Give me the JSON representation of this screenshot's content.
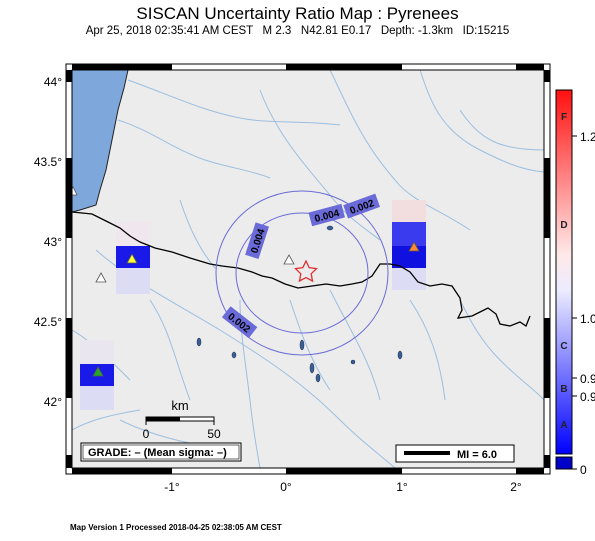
{
  "title": "SISCAN Uncertainty Ratio Map : Pyrenees",
  "subtitle": "Apr 25, 2018 02:35:41 AM CEST   M 2.3   N42.81 E0.17   Depth: -1.3km   ID:15215",
  "footer": "Map Version 1 Processed 2018-04-25 02:38:05 AM CEST",
  "map": {
    "lon_range": [
      -1.85,
      2.25
    ],
    "lat_range": [
      41.55,
      44.15
    ],
    "lat_ticks": [
      "44°",
      "43.5°",
      "43°",
      "42.5°",
      "42°"
    ],
    "lon_ticks": [
      "-1°",
      "0°",
      "1°",
      "2°"
    ],
    "colors": {
      "land": "#ececec",
      "sea": "#7ea8dc",
      "river": "#9bbfe0",
      "border": "#000000",
      "contour": "#6a6ad8",
      "epicenter": "#e03030"
    },
    "epicenter": {
      "lat": 42.81,
      "lon": 0.17,
      "symbol": "star"
    },
    "contours": [
      {
        "label": "0.004"
      },
      {
        "label": "0.002"
      }
    ],
    "contour_labels": [
      "0.004",
      "0.002",
      "0.004",
      "0.002"
    ],
    "stations": [
      {
        "lat": 42.9,
        "lon": -1.29,
        "color": "#ffff33"
      },
      {
        "lat": 42.77,
        "lon": -1.54,
        "color": "#ffffff"
      },
      {
        "lat": 42.15,
        "lon": -1.62,
        "color": "#22aa22"
      },
      {
        "lat": 42.98,
        "lon": 1.11,
        "color": "#ff8833"
      },
      {
        "lat": 42.87,
        "lon": 0.05,
        "color": "#ffffff"
      },
      {
        "lat": 43.3,
        "lon": -1.8,
        "color": "#ffffff"
      }
    ]
  },
  "scale_bar": {
    "unit": "km",
    "labels": [
      "0",
      "50"
    ]
  },
  "grade_box": {
    "text": "GRADE: – (Mean sigma: –)"
  },
  "mi_box": {
    "text": "MI = 6.0"
  },
  "colorbar": {
    "letters": [
      "F",
      "D",
      "C",
      "B",
      "A"
    ],
    "values": [
      "1.2",
      "1.0",
      "0.9",
      "0.9",
      "0"
    ]
  }
}
